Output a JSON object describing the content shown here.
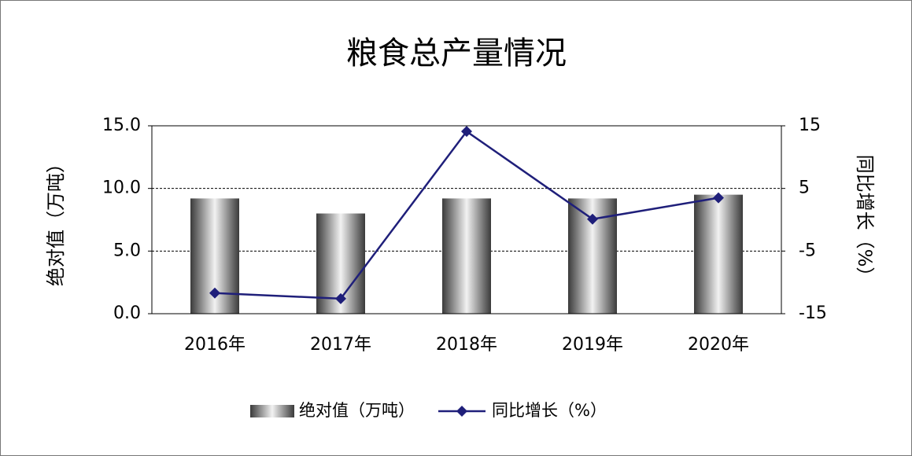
{
  "chart_data": {
    "type": "bar-line",
    "title": "粮食总产量情况",
    "ylabel": "绝对值（万吨）",
    "y2label": "同比增长（%）",
    "categories": [
      "2016年",
      "2017年",
      "2018年",
      "2019年",
      "2020年"
    ],
    "series": [
      {
        "name": "绝对值（万吨）",
        "type": "bar",
        "color": "#808080",
        "values": [
          9.2,
          8.0,
          9.2,
          9.2,
          9.5
        ]
      },
      {
        "name": "同比增长（%）",
        "type": "line",
        "axis": "y2",
        "color": "#1f1f7a",
        "values": [
          -11.7,
          -12.6,
          14.1,
          0.1,
          3.5
        ]
      }
    ],
    "ylim": [
      0,
      15
    ],
    "yticks": [
      {
        "value": 0,
        "label": "0.0"
      },
      {
        "value": 5,
        "label": "5.0"
      },
      {
        "value": 10,
        "label": "10.0"
      },
      {
        "value": 15,
        "label": "15.0"
      }
    ],
    "y2lim": [
      -15,
      15
    ],
    "y2ticks": [
      -15,
      -5,
      5,
      15
    ],
    "grid": true,
    "legend": "bottom"
  }
}
